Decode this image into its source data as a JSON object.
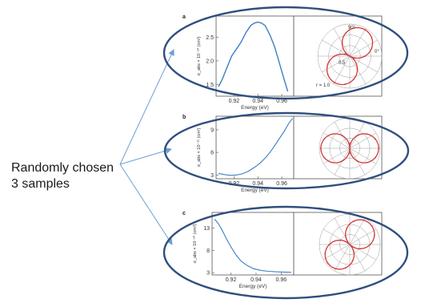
{
  "caption": {
    "line1": "Randomly chosen",
    "line2": "3 samples"
  },
  "colors": {
    "ellipse": "#2f4f7f",
    "arrow": "#6f9fd0",
    "spectrum": "#3b7fc4",
    "polar": "#d23a3a",
    "grid": "#9a9a9a"
  },
  "chart_data": [
    {
      "type": "line",
      "panel_label": "a",
      "xlabel": "Energy (eV)",
      "ylabel": "σ_abs × 10⁻¹⁰ (cm²)",
      "xlim": [
        0.905,
        0.97
      ],
      "ylim": [
        1.25,
        2.95
      ],
      "xticks": [
        "0.92",
        "0.94",
        "0.96"
      ],
      "yticks": [
        "1.5",
        "2.0",
        "2.5"
      ],
      "series": [
        {
          "x": [
            0.907,
            0.91,
            0.914,
            0.918,
            0.922,
            0.926,
            0.93,
            0.934,
            0.937,
            0.94,
            0.943,
            0.946,
            0.95,
            0.954,
            0.958,
            0.962,
            0.965
          ],
          "y": [
            1.45,
            1.6,
            1.85,
            2.1,
            2.25,
            2.4,
            2.6,
            2.75,
            2.8,
            2.82,
            2.8,
            2.75,
            2.55,
            2.3,
            1.95,
            1.6,
            1.35
          ]
        }
      ],
      "polar": {
        "angle_labels": [
          "90°",
          "0°"
        ],
        "radius_labels": [
          "0.5"
        ],
        "scale_label": "r = 1.0",
        "lobe_angle_deg": 60
      }
    },
    {
      "type": "line",
      "panel_label": "b",
      "xlabel": "Energy (eV)",
      "ylabel": "σ_abs × 10⁻¹¹ (cm²)",
      "xlim": [
        0.905,
        0.97
      ],
      "ylim": [
        2.5,
        10.8
      ],
      "xticks": [
        "0.92",
        "0.94",
        "0.96"
      ],
      "yticks": [
        "3",
        "6",
        "9"
      ],
      "series": [
        {
          "x": [
            0.907,
            0.912,
            0.917,
            0.922,
            0.927,
            0.932,
            0.937,
            0.942,
            0.947,
            0.952,
            0.957,
            0.962,
            0.966,
            0.969
          ],
          "y": [
            3.2,
            3.05,
            2.95,
            3.0,
            3.15,
            3.5,
            4.0,
            4.6,
            5.4,
            6.4,
            7.6,
            8.8,
            9.9,
            10.5
          ]
        }
      ],
      "polar": {
        "lobe_angle_deg": 0
      }
    },
    {
      "type": "line",
      "panel_label": "c",
      "xlabel": "Energy (eV)",
      "ylabel": "σ_abs × 10⁻¹⁰ (cm²)",
      "xlim": [
        0.905,
        0.97
      ],
      "ylim": [
        2.5,
        16.5
      ],
      "xticks": [
        "0.92",
        "0.94",
        "0.96"
      ],
      "yticks": [
        "3",
        "8",
        "13"
      ],
      "series": [
        {
          "x": [
            0.907,
            0.91,
            0.913,
            0.916,
            0.92,
            0.924,
            0.928,
            0.933,
            0.938,
            0.944,
            0.95,
            0.956,
            0.962,
            0.968
          ],
          "y": [
            15.0,
            14.0,
            12.5,
            10.8,
            8.8,
            7.0,
            5.6,
            4.6,
            3.9,
            3.5,
            3.3,
            3.2,
            3.15,
            3.1
          ]
        }
      ],
      "polar": {
        "lobe_angle_deg": 45
      }
    }
  ]
}
